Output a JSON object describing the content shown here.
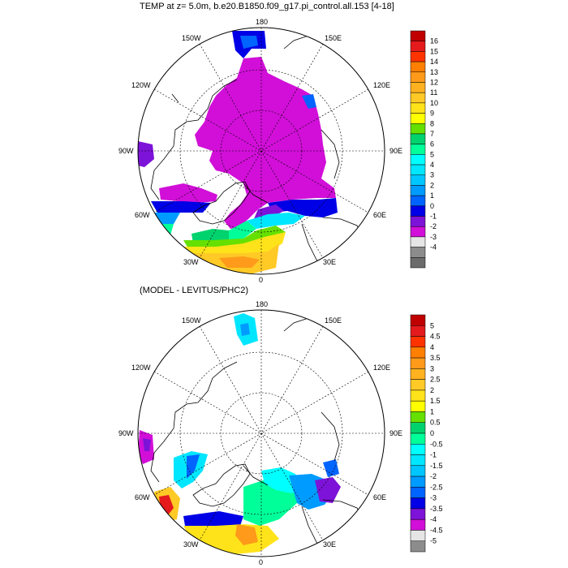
{
  "panels": [
    {
      "title": "TEMP at z=   5.0m, b.e20.B1850.f09_g17.pi_control.all.153 [4-18]",
      "lon_labels": [
        "180",
        "150E",
        "120E",
        "90E",
        "60E",
        "30E",
        "0",
        "30W",
        "60W",
        "90W",
        "120W",
        "150W"
      ],
      "colorbar": {
        "labels": [
          "16",
          "15",
          "14",
          "13",
          "12",
          "11",
          "10",
          "9",
          "8",
          "7",
          "6",
          "5",
          "4",
          "3",
          "2",
          "1",
          "0",
          "-1",
          "-2",
          "-3",
          "-4"
        ],
        "colors": [
          "#c00000",
          "#e41a1c",
          "#ff3300",
          "#ff7f00",
          "#ff9a1a",
          "#ffb21f",
          "#ffc926",
          "#ffe31a",
          "#ffff00",
          "#66e000",
          "#00d36e",
          "#00ff99",
          "#00ffff",
          "#00e6ff",
          "#00c6ff",
          "#009bff",
          "#0064ff",
          "#0000e6",
          "#7d13d8",
          "#d10fd8",
          "#e5e5e5",
          "#8c8c8c",
          "#6b6b6b"
        ]
      }
    },
    {
      "title": "(MODEL - LEVITUS/PHC2)",
      "lon_labels": [
        "180",
        "150E",
        "120E",
        "90E",
        "60E",
        "30E",
        "0",
        "30W",
        "60W",
        "90W",
        "120W",
        "150W"
      ],
      "colorbar": {
        "labels": [
          "5",
          "4.5",
          "4",
          "3.5",
          "3",
          "2.5",
          "2",
          "1.5",
          "1",
          "0.5",
          "0",
          "-0.5",
          "-1",
          "-1.5",
          "-2",
          "-2.5",
          "-3",
          "-3.5",
          "-4",
          "-4.5",
          "-5"
        ],
        "colors": [
          "#c00000",
          "#e41a1c",
          "#ff3300",
          "#ff7f00",
          "#ff9a1a",
          "#ffb21f",
          "#ffc926",
          "#ffe31a",
          "#ffff00",
          "#66e000",
          "#00d36e",
          "#00ff99",
          "#00ffff",
          "#00e6ff",
          "#00c6ff",
          "#009bff",
          "#0064ff",
          "#0000e6",
          "#7d13d8",
          "#d10fd8",
          "#e5e5e5",
          "#8c8c8c"
        ]
      }
    }
  ]
}
